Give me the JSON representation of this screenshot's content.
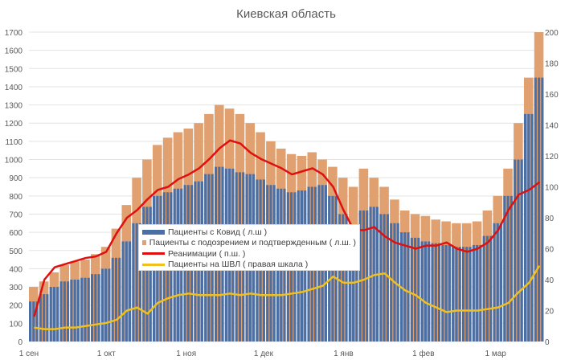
{
  "chart_data": {
    "type": "bar+line",
    "title": "Киевская область",
    "x_start": "2020-09-01",
    "x_step_days": 4,
    "x_ticks": [
      "1 сен",
      "1 окт",
      "1 ноя",
      "1 дек",
      "1 янв",
      "1 фев",
      "1 мар"
    ],
    "x_tick_days": [
      0,
      30,
      61,
      91,
      122,
      153,
      181
    ],
    "y_left": {
      "range": [
        0,
        1700
      ],
      "step": 100
    },
    "y_right": {
      "range": [
        0,
        200
      ],
      "step": 20
    },
    "series": [
      {
        "name": "Пациенты с Ковид ( л.ш )",
        "type": "bar",
        "axis": "left",
        "color": "#4a6fa5",
        "values": [
          220,
          260,
          300,
          330,
          340,
          350,
          370,
          400,
          460,
          550,
          650,
          740,
          800,
          820,
          840,
          860,
          880,
          920,
          960,
          950,
          930,
          920,
          890,
          860,
          840,
          820,
          830,
          850,
          860,
          800,
          700,
          640,
          720,
          740,
          700,
          650,
          600,
          570,
          550,
          540,
          530,
          520,
          520,
          530,
          580,
          650,
          800,
          1000,
          1250,
          1450
        ]
      },
      {
        "name": "Пациенты с подозрением и подтвержденным ( л.ш. )",
        "type": "bar",
        "axis": "left",
        "color": "#e0a070",
        "values": [
          300,
          330,
          380,
          420,
          440,
          450,
          480,
          520,
          620,
          750,
          900,
          1000,
          1080,
          1120,
          1150,
          1170,
          1200,
          1250,
          1300,
          1280,
          1250,
          1200,
          1150,
          1100,
          1060,
          1030,
          1020,
          1040,
          1000,
          960,
          900,
          850,
          950,
          900,
          850,
          780,
          720,
          700,
          690,
          670,
          660,
          650,
          650,
          660,
          720,
          800,
          950,
          1200,
          1450,
          1700
        ]
      },
      {
        "name": "Реанимации ( п.ш. )",
        "type": "line",
        "axis": "right",
        "color": "#e01010",
        "values": [
          16,
          40,
          48,
          50,
          52,
          54,
          55,
          58,
          70,
          80,
          85,
          92,
          98,
          100,
          105,
          108,
          112,
          118,
          125,
          130,
          128,
          122,
          118,
          115,
          112,
          108,
          110,
          112,
          108,
          100,
          85,
          72,
          72,
          74,
          68,
          64,
          62,
          60,
          62,
          62,
          64,
          60,
          58,
          60,
          64,
          72,
          85,
          95,
          98,
          103
        ]
      },
      {
        "name": "Пациенты на ШВЛ ( правая шкала )",
        "type": "line",
        "axis": "right",
        "color": "#f0c020",
        "values": [
          9,
          8,
          8,
          9,
          9,
          10,
          11,
          12,
          14,
          20,
          22,
          18,
          25,
          28,
          30,
          31,
          30,
          30,
          30,
          31,
          30,
          31,
          30,
          30,
          30,
          31,
          32,
          34,
          36,
          42,
          38,
          38,
          40,
          43,
          44,
          38,
          33,
          30,
          25,
          22,
          19,
          20,
          20,
          20,
          21,
          22,
          25,
          32,
          38,
          49
        ]
      }
    ],
    "legend": "center-left overlay"
  }
}
